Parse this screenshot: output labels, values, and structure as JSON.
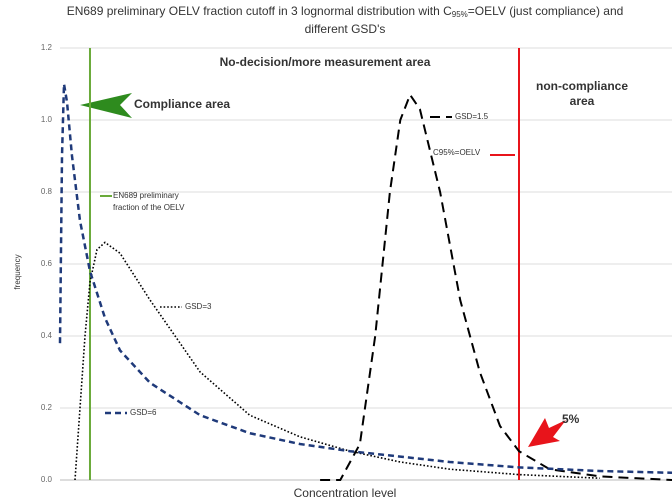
{
  "chart_data": {
    "type": "line",
    "title": [
      "EN689 preliminary OELV fraction cutoff in 3 lognormal distribution with C",
      "95%",
      "=OELV (just compliance) and",
      "different GSD's"
    ],
    "ylabel": "frequency",
    "xlabel": "Concentration level",
    "xlim": [
      0,
      100
    ],
    "ylim": [
      0,
      1.2
    ],
    "yticks": [
      {
        "value": 0,
        "label": "0.0"
      },
      0.2,
      0.4,
      0.6,
      0.8,
      {
        "value": 1,
        "label": "1.0"
      },
      1.2
    ],
    "grid": true,
    "series": [
      {
        "name": "GSD=1.5",
        "color": "#000000",
        "style": "dashed",
        "x": [
          42.5,
          45.8,
          49,
          51.5,
          53.9,
          55.6,
          57.2,
          58.8,
          62.1,
          65.4,
          68.6,
          71.9,
          75,
          80,
          88.2,
          100
        ],
        "values": [
          0,
          0,
          0.1,
          0.4,
          0.8,
          1.0,
          1.07,
          1.03,
          0.8,
          0.5,
          0.3,
          0.15,
          0.08,
          0.03,
          0.01,
          0
        ]
      },
      {
        "name": "GSD=3",
        "color": "#000000",
        "style": "dotted",
        "x": [
          2.45,
          3.27,
          4.08,
          4.9,
          6.05,
          7.35,
          9.8,
          14.7,
          18.8,
          22.9,
          31,
          39.2,
          47.4,
          55.6,
          63.7,
          75,
          88.2
        ],
        "values": [
          0,
          0.2,
          0.4,
          0.55,
          0.64,
          0.66,
          0.63,
          0.5,
          0.4,
          0.3,
          0.18,
          0.12,
          0.08,
          0.05,
          0.03,
          0.015,
          0.005
        ]
      },
      {
        "name": "GSD=6",
        "color": "#1f3a7a",
        "style": "dashed-thick",
        "x": [
          0,
          0.33,
          0.65,
          1.14,
          1.96,
          3.27,
          4.9,
          7.35,
          9.8,
          14.7,
          22.9,
          31,
          39.2,
          47.4,
          55.6,
          63.7,
          75,
          88.2,
          100
        ],
        "values": [
          0.38,
          0.9,
          1.1,
          1.05,
          0.9,
          0.72,
          0.58,
          0.45,
          0.36,
          0.27,
          0.18,
          0.13,
          0.1,
          0.08,
          0.065,
          0.05,
          0.035,
          0.025,
          0.02
        ]
      }
    ],
    "vlines": [
      {
        "x": 4.9,
        "color": "#6aaa3a",
        "label": [
          "EN689 preliminary",
          "fraction of the OELV"
        ]
      },
      {
        "x": 75,
        "color": "#e8141b",
        "label": [
          "C95%=OELV"
        ]
      }
    ],
    "annotations": [
      "No-decision/more measurement area",
      "Compliance area",
      "non-compliance",
      "area",
      "5%"
    ]
  }
}
